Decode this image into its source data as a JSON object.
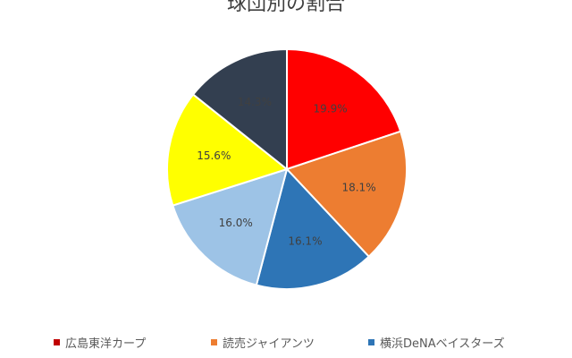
{
  "chart_data": {
    "type": "pie",
    "title": "球団別の割合",
    "categories": [
      "広島東洋カープ",
      "読売ジャイアンツ",
      "横浜DeNAベイスターズ",
      "",
      "",
      ""
    ],
    "values": [
      19.9,
      18.1,
      16.1,
      16.0,
      15.6,
      14.3
    ],
    "labels": [
      "19.9%",
      "18.1%",
      "16.1%",
      "16.0%",
      "15.6%",
      "14.3%"
    ],
    "colors": [
      "#FF0000",
      "#ED7D31",
      "#2E75B6",
      "#9DC3E6",
      "#FFFF00",
      "#333F50"
    ],
    "legend_position": "bottom",
    "legend": [
      {
        "label": "広島東洋カープ",
        "color": "#C00000"
      },
      {
        "label": "読売ジャイアンツ",
        "color": "#ED7D31"
      },
      {
        "label": "横浜DeNAベイスターズ",
        "color": "#2E75B6"
      }
    ]
  }
}
